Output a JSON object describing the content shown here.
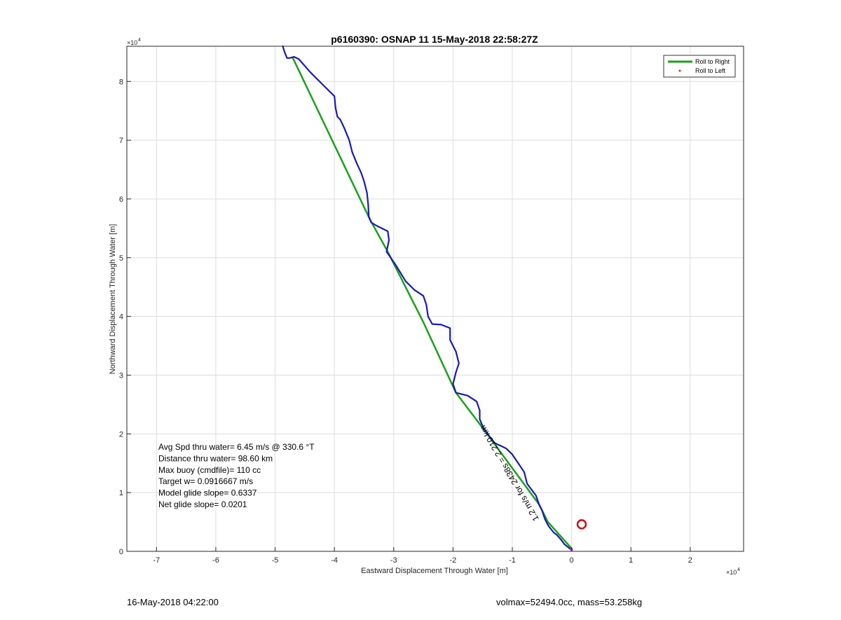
{
  "chart_data": {
    "type": "line",
    "title": "p6160390: OSNAP 11 15-May-2018 22:58:27Z",
    "xlabel": "Eastward Displacement Through Water [m]",
    "ylabel": "Northward Displacement Through Water [m]",
    "x_exponent_label": "×10",
    "x_exponent_power": "4",
    "y_exponent_label": "×10",
    "y_exponent_power": "4",
    "xlim": [
      -7.5,
      2.9
    ],
    "ylim": [
      0,
      8.6
    ],
    "scale_factor": 10000,
    "xticks": [
      -7,
      -6,
      -5,
      -4,
      -3,
      -2,
      -1,
      0,
      1,
      2
    ],
    "yticks": [
      0,
      1,
      2,
      3,
      4,
      5,
      6,
      7,
      8
    ],
    "grid": true,
    "legend_position": "top-right",
    "legend": [
      {
        "label": "Roll to Right",
        "color": "#1aa11a",
        "style": "line"
      },
      {
        "label": "Roll to Left",
        "color": "#dd2222",
        "style": "dot"
      }
    ],
    "series": [
      {
        "name": "Roll to Right",
        "color": "#1aa11a",
        "x": [
          -4.7,
          -3.4,
          -3.1,
          -2.5,
          -1.95,
          -1.5,
          -0.55,
          -0.4,
          0.0
        ],
        "y": [
          8.4,
          5.65,
          5.1,
          3.9,
          2.7,
          2.1,
          0.8,
          0.5,
          0.05
        ]
      },
      {
        "name": "",
        "color": "#1a1ab8",
        "x": [
          -4.87,
          -4.84,
          -4.8,
          -4.75,
          -4.68,
          -4.6,
          -4.4,
          -4.2,
          -4.0,
          -3.98,
          -3.95,
          -3.9,
          -3.83,
          -3.75,
          -3.7,
          -3.62,
          -3.55,
          -3.5,
          -3.45,
          -3.43,
          -3.42,
          -3.38,
          -3.3,
          -3.2,
          -3.1,
          -3.08,
          -3.1,
          -3.12,
          -3.05,
          -2.95,
          -2.8,
          -2.65,
          -2.5,
          -2.45,
          -2.42,
          -2.35,
          -2.2,
          -2.05,
          -2.05,
          -1.95,
          -1.9,
          -1.95,
          -2.0,
          -1.95,
          -1.75,
          -1.6,
          -1.55,
          -1.55,
          -1.5,
          -1.45,
          -1.38,
          -1.3,
          -1.25,
          -1.2,
          -1.1,
          -1.0,
          -0.9,
          -0.8,
          -0.75,
          -0.6,
          -0.55,
          -0.5,
          -0.45,
          -0.4,
          -0.35,
          -0.3,
          -0.25,
          -0.18,
          -0.12,
          -0.07,
          0.0
        ],
        "y": [
          8.6,
          8.5,
          8.4,
          8.4,
          8.42,
          8.38,
          8.15,
          7.95,
          7.75,
          7.55,
          7.4,
          7.35,
          7.2,
          7.0,
          6.8,
          6.6,
          6.45,
          6.3,
          6.1,
          5.9,
          5.7,
          5.6,
          5.55,
          5.5,
          5.45,
          5.3,
          5.2,
          5.1,
          5.0,
          4.85,
          4.6,
          4.45,
          4.35,
          4.2,
          4.0,
          3.87,
          3.86,
          3.8,
          3.6,
          3.4,
          3.2,
          3.05,
          2.85,
          2.7,
          2.65,
          2.55,
          2.4,
          2.25,
          2.13,
          2.05,
          1.95,
          1.85,
          1.82,
          1.8,
          1.75,
          1.65,
          1.5,
          1.35,
          1.15,
          0.95,
          0.8,
          0.7,
          0.55,
          0.45,
          0.38,
          0.32,
          0.28,
          0.2,
          0.12,
          0.08,
          0.02
        ]
      }
    ],
    "marker": {
      "x": 0.17,
      "y": 0.46,
      "color": "#cc1111"
    },
    "annotations": {
      "stats": [
        "Avg Spd thru water=  6.45 m/s @ 330.6 °T",
        "Distance thru water= 98.60 km",
        "Max buoy (cmdfile)= 110 cc",
        "Target w= 0.0916667 m/s",
        "Model glide slope= 0.6337",
        "Net glide slope= 0.0201"
      ],
      "rotated_label": "1.2 m/s for 2438s = 2.210 km",
      "rotated_x": -0.55,
      "rotated_y": 0.55
    }
  },
  "footer": {
    "left": "16-May-2018 04:22:00",
    "right": "volmax=52494.0cc, mass=53.258kg"
  }
}
